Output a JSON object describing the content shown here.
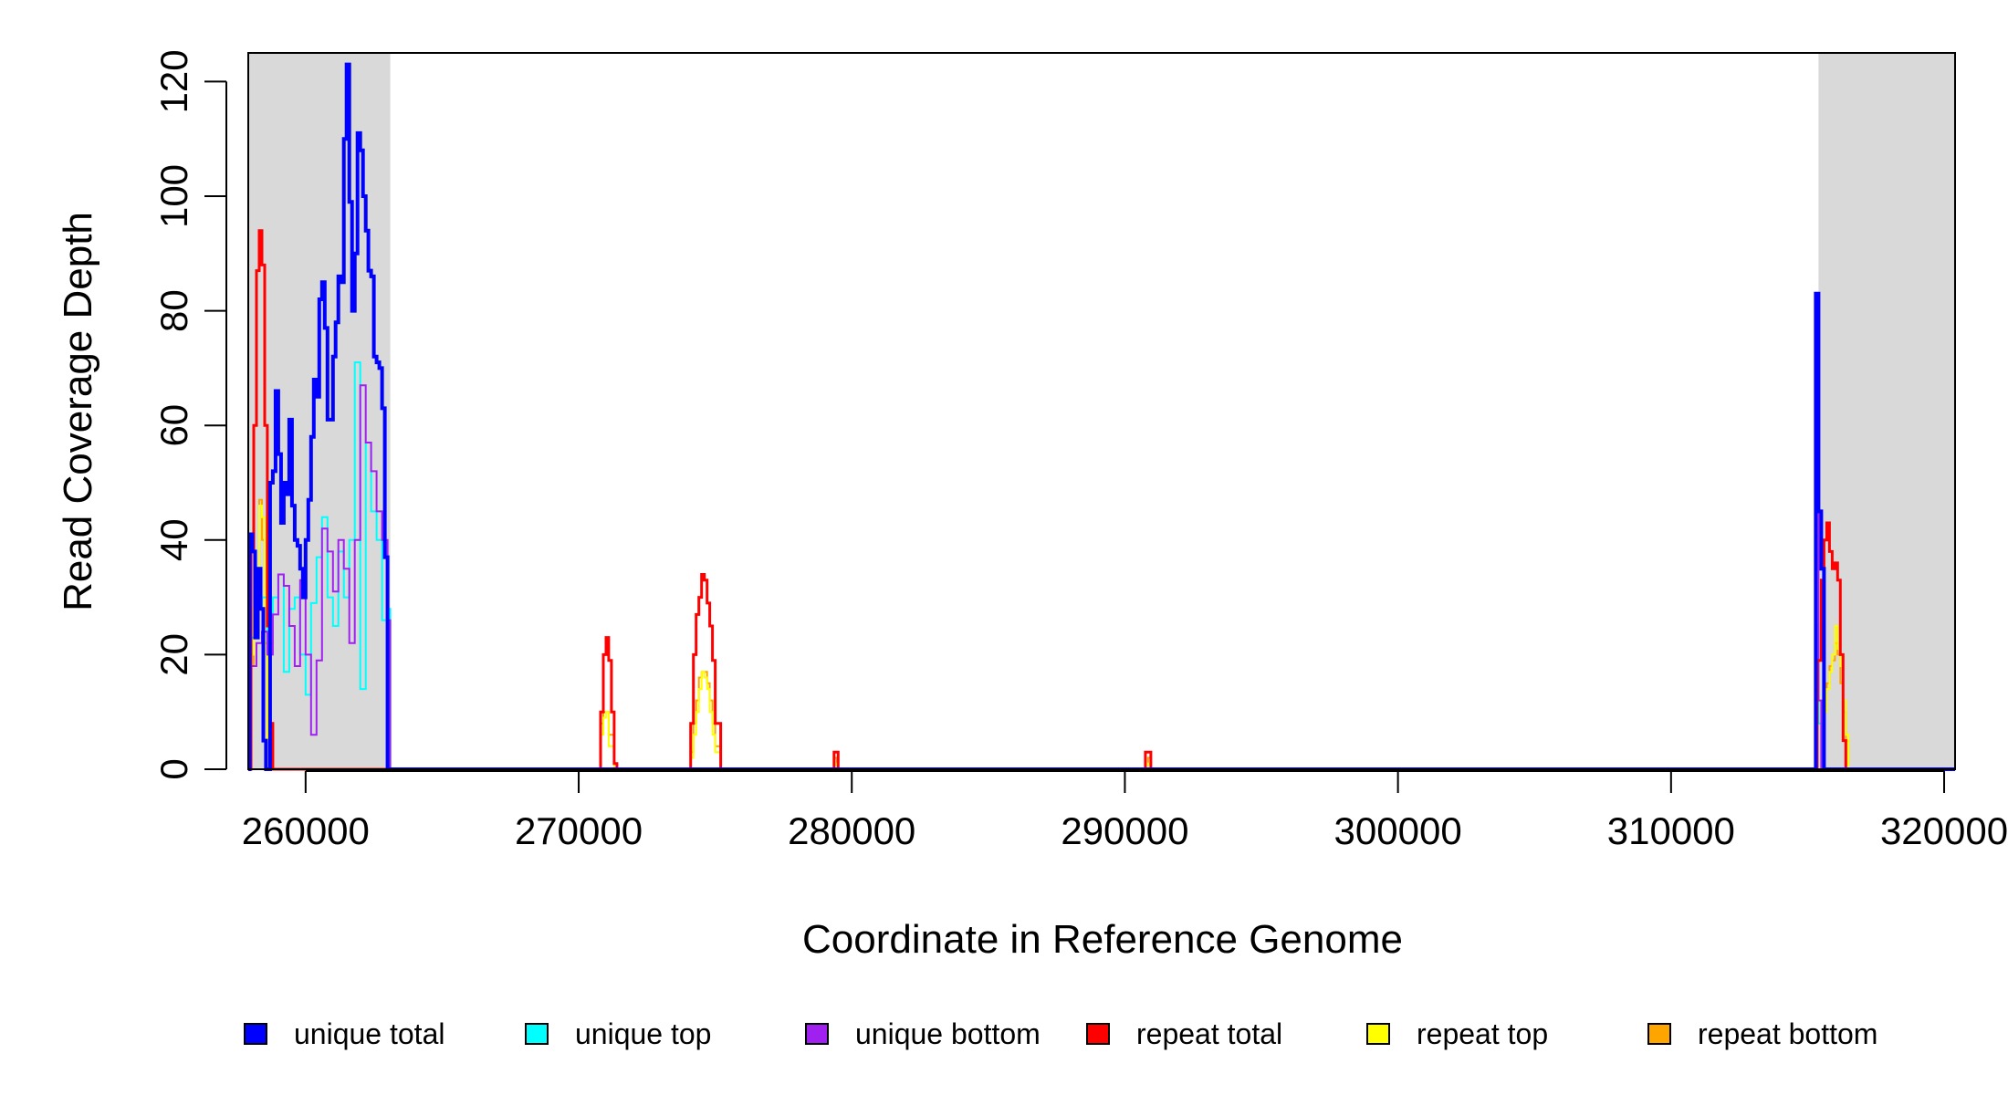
{
  "chart_data": {
    "type": "line",
    "title": "",
    "xlabel": "Coordinate in Reference Genome",
    "ylabel": "Read Coverage Depth",
    "xlim": [
      257900,
      320400
    ],
    "ylim": [
      0,
      125
    ],
    "x_ticks": [
      260000,
      270000,
      280000,
      290000,
      300000,
      310000,
      320000
    ],
    "y_ticks": [
      0,
      20,
      40,
      60,
      80,
      100,
      120
    ],
    "grid": false,
    "legend_position": "bottom",
    "shaded_regions": [
      {
        "x0": 257900,
        "x1": 263100,
        "color": "#d9d9d9"
      },
      {
        "x0": 315400,
        "x1": 320400,
        "color": "#d9d9d9"
      }
    ],
    "series": [
      {
        "name": "repeat bottom",
        "color": "#FFA500",
        "width": 2,
        "points": [
          [
            257900,
            0
          ],
          [
            258000,
            18
          ],
          [
            258100,
            25
          ],
          [
            258200,
            30
          ],
          [
            258300,
            47
          ],
          [
            258400,
            40
          ],
          [
            258500,
            22
          ],
          [
            258600,
            6
          ],
          [
            258700,
            0
          ],
          [
            263100,
            0
          ],
          [
            270700,
            0
          ],
          [
            270800,
            8
          ],
          [
            270900,
            10
          ],
          [
            271000,
            10
          ],
          [
            271100,
            6
          ],
          [
            271300,
            0
          ],
          [
            274000,
            0
          ],
          [
            274100,
            3
          ],
          [
            274200,
            8
          ],
          [
            274300,
            12
          ],
          [
            274400,
            16
          ],
          [
            274500,
            17
          ],
          [
            274600,
            17
          ],
          [
            274700,
            15
          ],
          [
            274800,
            12
          ],
          [
            274900,
            8
          ],
          [
            275000,
            4
          ],
          [
            275200,
            0
          ],
          [
            279300,
            0
          ],
          [
            279350,
            2
          ],
          [
            279450,
            0
          ],
          [
            290800,
            0
          ],
          [
            290850,
            2
          ],
          [
            290950,
            0
          ],
          [
            315500,
            0
          ],
          [
            315550,
            12
          ],
          [
            315700,
            15
          ],
          [
            315800,
            18
          ],
          [
            315900,
            19
          ],
          [
            316000,
            22
          ],
          [
            316100,
            20
          ],
          [
            316200,
            15
          ],
          [
            316300,
            10
          ],
          [
            316400,
            5
          ],
          [
            316500,
            0
          ],
          [
            320400,
            0
          ]
        ]
      },
      {
        "name": "repeat top",
        "color": "#FFFF00",
        "width": 2,
        "points": [
          [
            257900,
            0
          ],
          [
            258000,
            20
          ],
          [
            258100,
            28
          ],
          [
            258200,
            30
          ],
          [
            258300,
            46
          ],
          [
            258400,
            44
          ],
          [
            258500,
            20
          ],
          [
            258600,
            5
          ],
          [
            258700,
            0
          ],
          [
            263100,
            0
          ],
          [
            270700,
            0
          ],
          [
            270800,
            6
          ],
          [
            270900,
            9
          ],
          [
            271000,
            10
          ],
          [
            271100,
            4
          ],
          [
            271300,
            0
          ],
          [
            274000,
            0
          ],
          [
            274100,
            2
          ],
          [
            274200,
            6
          ],
          [
            274300,
            10
          ],
          [
            274400,
            14
          ],
          [
            274500,
            17
          ],
          [
            274600,
            16
          ],
          [
            274700,
            14
          ],
          [
            274800,
            10
          ],
          [
            274900,
            6
          ],
          [
            275000,
            3
          ],
          [
            275200,
            0
          ],
          [
            279300,
            0
          ],
          [
            279350,
            1
          ],
          [
            279450,
            0
          ],
          [
            290800,
            0
          ],
          [
            290850,
            1
          ],
          [
            290950,
            0
          ],
          [
            315500,
            0
          ],
          [
            315550,
            10
          ],
          [
            315700,
            14
          ],
          [
            315800,
            17
          ],
          [
            315900,
            20
          ],
          [
            316000,
            25
          ],
          [
            316100,
            21
          ],
          [
            316200,
            18
          ],
          [
            316300,
            12
          ],
          [
            316400,
            6
          ],
          [
            316500,
            0
          ],
          [
            320400,
            0
          ]
        ]
      },
      {
        "name": "unique top",
        "color": "#00FFFF",
        "width": 2,
        "points": [
          [
            257900,
            0
          ],
          [
            258000,
            23
          ],
          [
            258200,
            28
          ],
          [
            258400,
            30
          ],
          [
            258600,
            22
          ],
          [
            258800,
            30
          ],
          [
            259000,
            34
          ],
          [
            259200,
            17
          ],
          [
            259400,
            28
          ],
          [
            259600,
            30
          ],
          [
            259800,
            20
          ],
          [
            260000,
            13
          ],
          [
            260200,
            29
          ],
          [
            260400,
            37
          ],
          [
            260600,
            44
          ],
          [
            260800,
            30
          ],
          [
            261000,
            25
          ],
          [
            261200,
            38
          ],
          [
            261400,
            30
          ],
          [
            261600,
            40
          ],
          [
            261800,
            71
          ],
          [
            262000,
            14
          ],
          [
            262200,
            57
          ],
          [
            262400,
            45
          ],
          [
            262600,
            40
          ],
          [
            262800,
            26
          ],
          [
            263000,
            28
          ],
          [
            263100,
            0
          ],
          [
            315200,
            0
          ],
          [
            315300,
            25
          ],
          [
            315400,
            8
          ],
          [
            315500,
            0
          ],
          [
            320400,
            0
          ]
        ]
      },
      {
        "name": "unique bottom",
        "color": "#A020F0",
        "width": 2,
        "points": [
          [
            257900,
            0
          ],
          [
            258000,
            18
          ],
          [
            258200,
            22
          ],
          [
            258400,
            24
          ],
          [
            258600,
            20
          ],
          [
            258800,
            27
          ],
          [
            259000,
            34
          ],
          [
            259200,
            32
          ],
          [
            259400,
            25
          ],
          [
            259600,
            18
          ],
          [
            259800,
            33
          ],
          [
            260000,
            20
          ],
          [
            260200,
            6
          ],
          [
            260400,
            19
          ],
          [
            260600,
            42
          ],
          [
            260800,
            38
          ],
          [
            261000,
            31
          ],
          [
            261200,
            40
          ],
          [
            261400,
            35
          ],
          [
            261600,
            22
          ],
          [
            261800,
            40
          ],
          [
            262000,
            67
          ],
          [
            262200,
            57
          ],
          [
            262400,
            52
          ],
          [
            262600,
            45
          ],
          [
            262800,
            40
          ],
          [
            263000,
            26
          ],
          [
            263100,
            0
          ],
          [
            315200,
            0
          ],
          [
            315300,
            52
          ],
          [
            315400,
            12
          ],
          [
            315500,
            0
          ],
          [
            320400,
            0
          ]
        ]
      },
      {
        "name": "repeat total",
        "color": "#FF0000",
        "width": 3,
        "points": [
          [
            257900,
            0
          ],
          [
            258000,
            38
          ],
          [
            258100,
            60
          ],
          [
            258200,
            87
          ],
          [
            258300,
            94
          ],
          [
            258400,
            88
          ],
          [
            258500,
            60
          ],
          [
            258600,
            25
          ],
          [
            258700,
            8
          ],
          [
            258800,
            0
          ],
          [
            263100,
            0
          ],
          [
            270700,
            0
          ],
          [
            270800,
            10
          ],
          [
            270900,
            20
          ],
          [
            271000,
            23
          ],
          [
            271100,
            19
          ],
          [
            271200,
            10
          ],
          [
            271300,
            1
          ],
          [
            271400,
            0
          ],
          [
            274000,
            0
          ],
          [
            274100,
            8
          ],
          [
            274200,
            20
          ],
          [
            274300,
            27
          ],
          [
            274400,
            30
          ],
          [
            274500,
            34
          ],
          [
            274600,
            33
          ],
          [
            274700,
            29
          ],
          [
            274800,
            25
          ],
          [
            274900,
            19
          ],
          [
            275000,
            8
          ],
          [
            275200,
            0
          ],
          [
            279300,
            0
          ],
          [
            279350,
            3
          ],
          [
            279450,
            3
          ],
          [
            279500,
            0
          ],
          [
            290700,
            0
          ],
          [
            290750,
            3
          ],
          [
            290900,
            3
          ],
          [
            290950,
            0
          ],
          [
            315300,
            0
          ],
          [
            315350,
            19
          ],
          [
            315500,
            33
          ],
          [
            315600,
            40
          ],
          [
            315700,
            43
          ],
          [
            315800,
            38
          ],
          [
            315900,
            35
          ],
          [
            316000,
            36
          ],
          [
            316100,
            33
          ],
          [
            316200,
            20
          ],
          [
            316300,
            5
          ],
          [
            316400,
            0
          ],
          [
            320400,
            0
          ]
        ]
      },
      {
        "name": "unique total",
        "color": "#0000FF",
        "width": 4,
        "points": [
          [
            257900,
            0
          ],
          [
            257950,
            41
          ],
          [
            258050,
            38
          ],
          [
            258150,
            23
          ],
          [
            258250,
            35
          ],
          [
            258350,
            28
          ],
          [
            258450,
            5
          ],
          [
            258550,
            0
          ],
          [
            258700,
            50
          ],
          [
            258800,
            52
          ],
          [
            258900,
            66
          ],
          [
            259000,
            55
          ],
          [
            259100,
            43
          ],
          [
            259200,
            50
          ],
          [
            259300,
            48
          ],
          [
            259400,
            61
          ],
          [
            259500,
            46
          ],
          [
            259600,
            40
          ],
          [
            259700,
            39
          ],
          [
            259800,
            35
          ],
          [
            259900,
            30
          ],
          [
            260000,
            40
          ],
          [
            260100,
            47
          ],
          [
            260200,
            58
          ],
          [
            260300,
            68
          ],
          [
            260400,
            65
          ],
          [
            260500,
            82
          ],
          [
            260600,
            85
          ],
          [
            260700,
            77
          ],
          [
            260800,
            61
          ],
          [
            260900,
            61
          ],
          [
            261000,
            72
          ],
          [
            261100,
            78
          ],
          [
            261200,
            86
          ],
          [
            261300,
            85
          ],
          [
            261400,
            110
          ],
          [
            261500,
            123
          ],
          [
            261600,
            99
          ],
          [
            261700,
            80
          ],
          [
            261800,
            90
          ],
          [
            261900,
            111
          ],
          [
            262000,
            108
          ],
          [
            262100,
            100
          ],
          [
            262200,
            94
          ],
          [
            262300,
            87
          ],
          [
            262400,
            86
          ],
          [
            262500,
            72
          ],
          [
            262600,
            71
          ],
          [
            262700,
            70
          ],
          [
            262800,
            63
          ],
          [
            262900,
            37
          ],
          [
            263000,
            0
          ],
          [
            263100,
            0
          ],
          [
            315200,
            0
          ],
          [
            315300,
            83
          ],
          [
            315400,
            45
          ],
          [
            315500,
            35
          ],
          [
            315600,
            0
          ],
          [
            320400,
            0
          ]
        ]
      }
    ]
  }
}
